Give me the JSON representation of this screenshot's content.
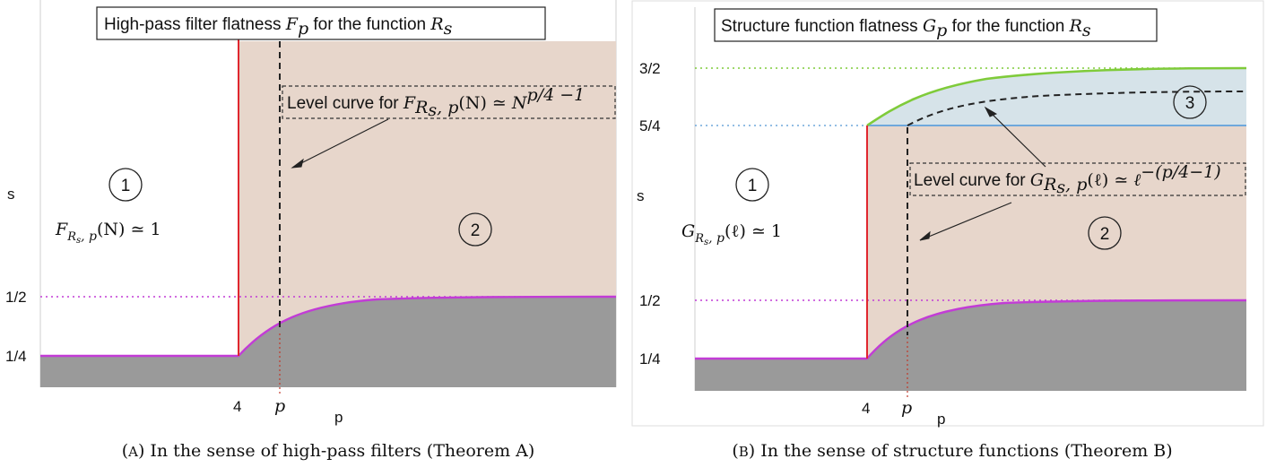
{
  "panelA": {
    "title_text": "High-pass filter flatness ",
    "title_sym": "F",
    "title_sym_sub": "p",
    "title_mid": " for the function ",
    "title_fn": "R",
    "title_fn_sub": "s",
    "level_text": "Level curve for ",
    "level_F": "F",
    "level_sub": "R",
    "level_sub2": "s",
    "level_sub3": ", p",
    "level_arg": "(N)",
    "level_rel": " ≃ ",
    "level_N": "N",
    "level_exp": "p/4 −1",
    "region1": "1",
    "region2": "2",
    "region1_F": "F",
    "region1_sub": "R",
    "region1_sub2": "s",
    "region1_sub3": ", p",
    "region1_arg": "(N) ≃ 1",
    "ylabel": "s",
    "xlabel": "p",
    "ytick_half": "1/2",
    "ytick_quarter": "1/4",
    "xtick_4": "4",
    "xtick_p": "p",
    "caption_a": "(",
    "caption_sc": "A",
    "caption_rest": ") In the sense of high-pass filters (Theorem A)"
  },
  "panelB": {
    "title_text": "Structure function flatness ",
    "title_sym": "G",
    "title_sym_sub": "p",
    "title_mid": " for the function ",
    "title_fn": "R",
    "title_fn_sub": "s",
    "level_text": "Level curve for ",
    "level_G": "G",
    "level_sub": "R",
    "level_sub2": "s",
    "level_sub3": ", p",
    "level_arg": "(ℓ)",
    "level_rel": " ≃ ",
    "level_l": "ℓ",
    "level_exp": "−(p/4−1)",
    "region1": "1",
    "region2": "2",
    "region3": "3",
    "region1_G": "G",
    "region1_sub": "R",
    "region1_sub2": "s",
    "region1_sub3": ", p",
    "region1_arg": "(ℓ) ≃ 1",
    "ylabel": "s",
    "xlabel": "p",
    "ytick_threehalf": "3/2",
    "ytick_fivequarter": "5/4",
    "ytick_half": "1/2",
    "ytick_quarter": "1/4",
    "xtick_4": "4",
    "xtick_p": "p",
    "caption_a": "(",
    "caption_sc": "B",
    "caption_rest": ") In the sense of structure functions (Theorem B)"
  },
  "colors": {
    "region2": "#e7d6cb",
    "region3": "#d6e3e9",
    "gray": "#9a9a9a",
    "magenta": "#c23cd6",
    "red": "#e0272f",
    "green": "#7fcb3a",
    "blue": "#6fa8dc"
  }
}
